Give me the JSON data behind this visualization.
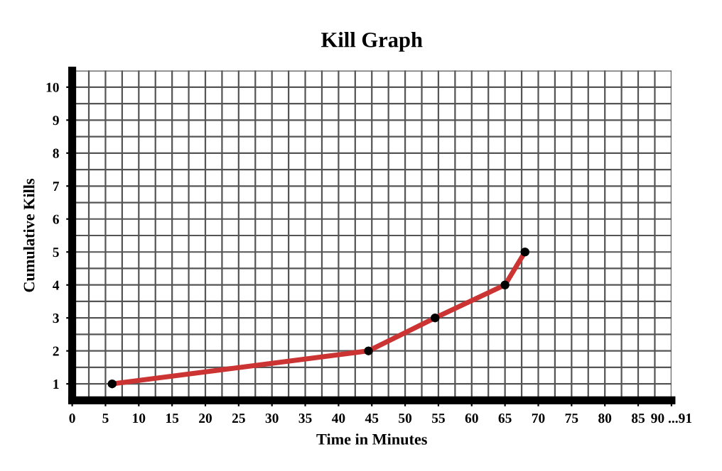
{
  "chart_data": {
    "type": "line",
    "title": "Kill Graph",
    "xlabel": "Time in Minutes",
    "ylabel": "Cumulative Kills",
    "x": [
      6,
      44.5,
      54.5,
      65,
      68
    ],
    "series": [
      {
        "color": "#cc3333",
        "values": [
          1,
          2,
          3,
          4,
          5
        ]
      }
    ],
    "xlim": [
      0,
      90
    ],
    "ylim": [
      0.5,
      10.5
    ],
    "xticks": [
      0,
      5,
      10,
      15,
      20,
      25,
      30,
      35,
      40,
      45,
      50,
      55,
      60,
      65,
      70,
      75,
      80,
      85,
      {
        "value": 90,
        "label": "90 ...91"
      }
    ],
    "yticks": [
      1,
      2,
      3,
      4,
      5,
      6,
      7,
      8,
      9,
      10
    ],
    "grid": true,
    "marker": "circle",
    "line_style": "solid"
  }
}
